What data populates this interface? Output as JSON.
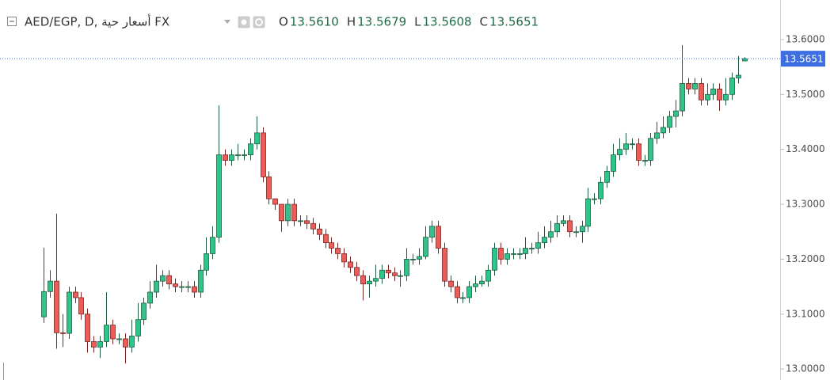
{
  "header": {
    "symbol": "AED/EGP, D, أسعار حية FX",
    "ohlc": [
      {
        "label": "O",
        "value": "13.5610"
      },
      {
        "label": "H",
        "value": "13.5679"
      },
      {
        "label": "L",
        "value": "13.5608"
      },
      {
        "label": "C",
        "value": "13.5651"
      }
    ]
  },
  "chart_data": {
    "type": "candlestick",
    "up_color": "#2dc58a",
    "down_color": "#ee5c58",
    "up_border": "#1e5b3f",
    "down_border": "#7a2522",
    "price_line_color": "#3d6fe0",
    "ylim": [
      12.98,
      13.672
    ],
    "yticks": [
      {
        "value": 13.0,
        "label": "13.0000"
      },
      {
        "value": 13.1,
        "label": "13.1000"
      },
      {
        "value": 13.2,
        "label": "13.2000"
      },
      {
        "value": 13.3,
        "label": "13.3000"
      },
      {
        "value": 13.4,
        "label": "13.4000"
      },
      {
        "value": 13.5,
        "label": "13.5000"
      },
      {
        "value": 13.6,
        "label": "13.6000"
      }
    ],
    "open": [
      13.095,
      13.141,
      13.16,
      13.066,
      13.065,
      13.14,
      13.13,
      13.1,
      13.05,
      13.04,
      13.05,
      13.08,
      13.055,
      13.055,
      13.04,
      13.06,
      13.09,
      13.12,
      13.14,
      13.16,
      13.17,
      13.155,
      13.15,
      13.15,
      13.15,
      13.14,
      13.18,
      13.21,
      13.24,
      13.39,
      13.38,
      13.39,
      13.39,
      13.39,
      13.41,
      13.43,
      13.35,
      13.31,
      13.3,
      13.27,
      13.3,
      13.27,
      13.27,
      13.265,
      13.255,
      13.245,
      13.23,
      13.22,
      13.21,
      13.195,
      13.185,
      13.17,
      13.155,
      13.16,
      13.165,
      13.18,
      13.175,
      13.17,
      13.17,
      13.2,
      13.2,
      13.205,
      13.24,
      13.26,
      13.22,
      13.16,
      13.15,
      13.13,
      13.13,
      13.15,
      13.155,
      13.16,
      13.18,
      13.22,
      13.2,
      13.21,
      13.21,
      13.21,
      13.22,
      13.22,
      13.23,
      13.24,
      13.25,
      13.265,
      13.27,
      13.25,
      13.25,
      13.26,
      13.31,
      13.31,
      13.34,
      13.36,
      13.39,
      13.4,
      13.41,
      13.41,
      13.38,
      13.38,
      13.42,
      13.43,
      13.44,
      13.46,
      13.47,
      13.52,
      13.51,
      13.52,
      13.49,
      13.5,
      13.51,
      13.49,
      13.5,
      13.53,
      13.561
    ],
    "high": [
      13.221,
      13.18,
      13.283,
      13.1,
      13.15,
      13.15,
      13.14,
      13.11,
      13.06,
      13.06,
      13.14,
      13.09,
      13.065,
      13.065,
      13.09,
      13.12,
      13.13,
      13.16,
      13.19,
      13.18,
      13.18,
      13.165,
      13.16,
      13.16,
      13.16,
      13.19,
      13.24,
      13.26,
      13.48,
      13.4,
      13.4,
      13.41,
      13.4,
      13.42,
      13.46,
      13.44,
      13.36,
      13.31,
      13.3,
      13.31,
      13.31,
      13.28,
      13.28,
      13.275,
      13.265,
      13.255,
      13.24,
      13.23,
      13.22,
      13.205,
      13.195,
      13.18,
      13.17,
      13.19,
      13.19,
      13.19,
      13.185,
      13.18,
      13.22,
      13.21,
      13.22,
      13.26,
      13.27,
      13.27,
      13.23,
      13.17,
      13.16,
      13.14,
      13.16,
      13.17,
      13.17,
      13.19,
      13.23,
      13.23,
      13.22,
      13.22,
      13.22,
      13.24,
      13.23,
      13.25,
      13.26,
      13.27,
      13.28,
      13.28,
      13.28,
      13.26,
      13.27,
      13.33,
      13.32,
      13.35,
      13.37,
      13.41,
      13.42,
      13.43,
      13.42,
      13.42,
      13.39,
      13.43,
      13.45,
      13.46,
      13.47,
      13.49,
      13.59,
      13.53,
      13.53,
      13.53,
      13.52,
      13.52,
      13.52,
      13.53,
      13.54,
      13.57,
      13.5679
    ],
    "low": [
      13.084,
      13.13,
      13.037,
      13.04,
      13.055,
      13.12,
      13.09,
      13.03,
      13.03,
      13.02,
      13.04,
      13.045,
      13.045,
      13.01,
      13.03,
      13.05,
      13.08,
      13.11,
      13.13,
      13.15,
      13.145,
      13.14,
      13.14,
      13.14,
      13.13,
      13.13,
      13.17,
      13.2,
      13.23,
      13.37,
      13.37,
      13.38,
      13.38,
      13.38,
      13.4,
      13.34,
      13.3,
      13.29,
      13.25,
      13.26,
      13.26,
      13.26,
      13.255,
      13.245,
      13.235,
      13.22,
      13.21,
      13.2,
      13.185,
      13.175,
      13.16,
      13.125,
      13.13,
      13.15,
      13.155,
      13.165,
      13.16,
      13.15,
      13.16,
      13.19,
      13.19,
      13.2,
      13.23,
      13.21,
      13.15,
      13.14,
      13.12,
      13.12,
      13.12,
      13.14,
      13.15,
      13.15,
      13.17,
      13.19,
      13.19,
      13.2,
      13.2,
      13.2,
      13.21,
      13.21,
      13.22,
      13.23,
      13.24,
      13.26,
      13.24,
      13.24,
      13.23,
      13.25,
      13.3,
      13.3,
      13.33,
      13.35,
      13.38,
      13.39,
      13.4,
      13.37,
      13.37,
      13.37,
      13.41,
      13.42,
      13.43,
      13.44,
      13.46,
      13.5,
      13.5,
      13.48,
      13.48,
      13.49,
      13.47,
      13.48,
      13.49,
      13.52,
      13.5608
    ],
    "close": [
      13.141,
      13.16,
      13.066,
      13.065,
      13.14,
      13.13,
      13.1,
      13.05,
      13.04,
      13.05,
      13.08,
      13.055,
      13.055,
      13.04,
      13.06,
      13.09,
      13.12,
      13.14,
      13.16,
      13.17,
      13.155,
      13.15,
      13.15,
      13.15,
      13.14,
      13.18,
      13.21,
      13.24,
      13.39,
      13.38,
      13.39,
      13.39,
      13.39,
      13.41,
      13.43,
      13.35,
      13.31,
      13.3,
      13.27,
      13.3,
      13.27,
      13.27,
      13.265,
      13.255,
      13.245,
      13.23,
      13.22,
      13.21,
      13.195,
      13.185,
      13.17,
      13.155,
      13.16,
      13.165,
      13.18,
      13.175,
      13.17,
      13.17,
      13.2,
      13.2,
      13.205,
      13.24,
      13.26,
      13.22,
      13.16,
      13.15,
      13.13,
      13.13,
      13.15,
      13.155,
      13.16,
      13.18,
      13.22,
      13.2,
      13.21,
      13.21,
      13.21,
      13.22,
      13.22,
      13.23,
      13.24,
      13.25,
      13.265,
      13.27,
      13.25,
      13.25,
      13.26,
      13.31,
      13.31,
      13.34,
      13.36,
      13.39,
      13.4,
      13.41,
      13.41,
      13.38,
      13.38,
      13.42,
      13.43,
      13.44,
      13.46,
      13.47,
      13.52,
      13.51,
      13.52,
      13.49,
      13.5,
      13.51,
      13.49,
      13.5,
      13.53,
      13.535,
      13.5651
    ]
  }
}
